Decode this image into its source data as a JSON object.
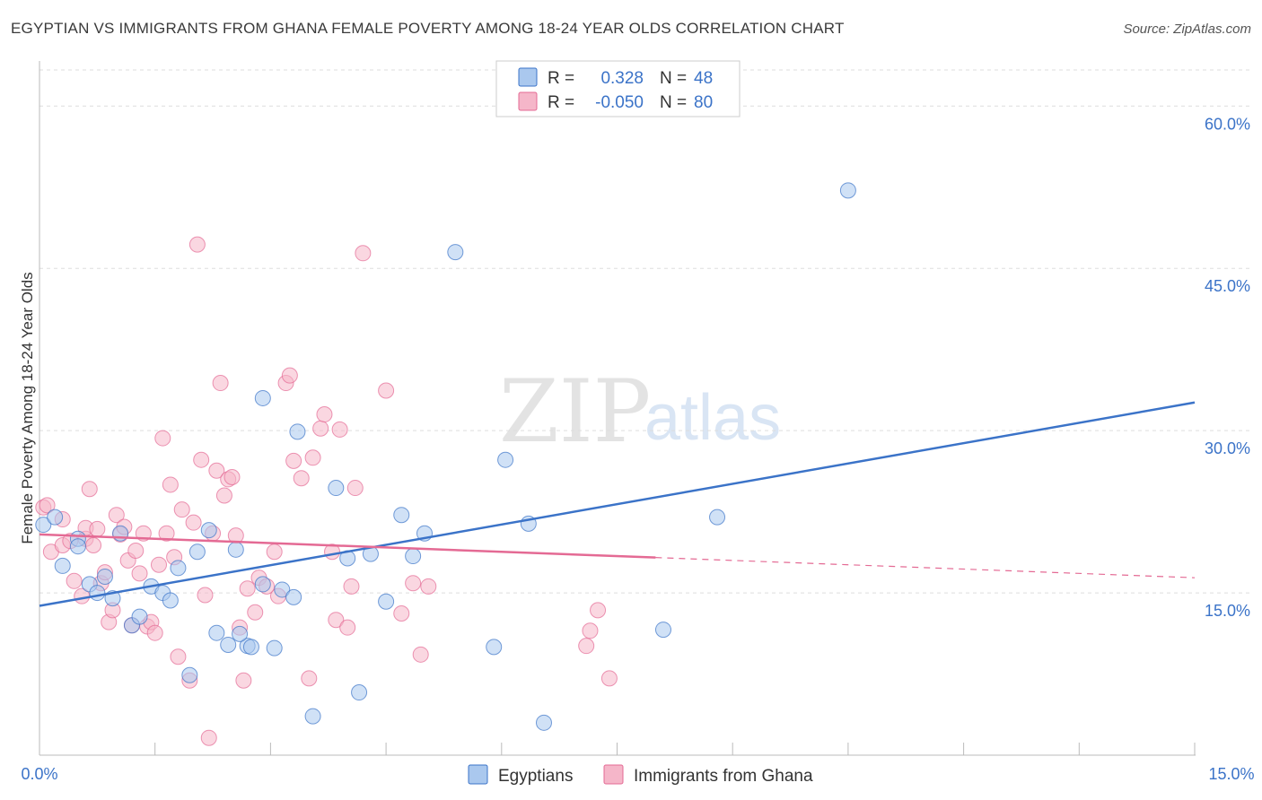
{
  "title": "EGYPTIAN VS IMMIGRANTS FROM GHANA FEMALE POVERTY AMONG 18-24 YEAR OLDS CORRELATION CHART",
  "source": "Source: ZipAtlas.com",
  "watermark": {
    "left": "ZIP",
    "right": "atlas"
  },
  "colors": {
    "blue": "#3b73c8",
    "blue_fill": "#aac8ee",
    "pink": "#e46a94",
    "pink_fill": "#f5b6c9",
    "grid": "#dddddd"
  },
  "legend": {
    "rows": [
      {
        "r_label": "R =",
        "r_value": "0.328",
        "n_label": "N =",
        "n_value": "48"
      },
      {
        "r_label": "R =",
        "r_value": "-0.050",
        "n_label": "N =",
        "n_value": "80"
      }
    ]
  },
  "chart_data": {
    "type": "scatter",
    "title": "EGYPTIAN VS IMMIGRANTS FROM GHANA FEMALE POVERTY AMONG 18-24 YEAR OLDS CORRELATION CHART",
    "xlabel": "",
    "ylabel": "Female Poverty Among 18-24 Year Olds",
    "xlim": [
      0,
      15
    ],
    "ylim": [
      0,
      64
    ],
    "x_tick_labels": [
      "0.0%",
      "15.0%"
    ],
    "y_ticks": [
      15,
      30,
      45,
      60
    ],
    "y_tick_labels": [
      "15.0%",
      "30.0%",
      "45.0%",
      "60.0%"
    ],
    "grid": true,
    "legend_position": "bottom",
    "series": [
      {
        "name": "Egyptians",
        "color": "#3b73c8",
        "r": 0.328,
        "n": 48,
        "trend": {
          "x": [
            0,
            15
          ],
          "y": [
            13.8,
            32.6
          ],
          "dashed_from": null
        },
        "points": [
          [
            0.05,
            21.3
          ],
          [
            0.2,
            22.0
          ],
          [
            0.3,
            17.5
          ],
          [
            0.5,
            20.0
          ],
          [
            0.5,
            19.3
          ],
          [
            0.65,
            15.8
          ],
          [
            0.75,
            15.0
          ],
          [
            0.85,
            16.5
          ],
          [
            0.95,
            14.5
          ],
          [
            1.05,
            20.5
          ],
          [
            1.2,
            12.0
          ],
          [
            1.3,
            12.8
          ],
          [
            1.45,
            15.6
          ],
          [
            1.6,
            15.0
          ],
          [
            1.7,
            14.3
          ],
          [
            1.8,
            17.3
          ],
          [
            1.95,
            7.4
          ],
          [
            2.05,
            18.8
          ],
          [
            2.2,
            20.8
          ],
          [
            2.3,
            11.3
          ],
          [
            2.55,
            19.0
          ],
          [
            2.45,
            10.2
          ],
          [
            2.7,
            10.1
          ],
          [
            2.6,
            11.2
          ],
          [
            2.75,
            10.0
          ],
          [
            2.9,
            15.8
          ],
          [
            2.9,
            33.0
          ],
          [
            3.05,
            9.9
          ],
          [
            3.15,
            15.3
          ],
          [
            3.3,
            14.6
          ],
          [
            3.35,
            29.9
          ],
          [
            3.55,
            3.6
          ],
          [
            3.85,
            24.7
          ],
          [
            4.0,
            18.2
          ],
          [
            4.15,
            5.8
          ],
          [
            4.3,
            18.6
          ],
          [
            4.5,
            14.2
          ],
          [
            4.7,
            22.2
          ],
          [
            4.85,
            18.4
          ],
          [
            5.0,
            20.5
          ],
          [
            5.4,
            46.5
          ],
          [
            5.9,
            10.0
          ],
          [
            6.05,
            27.3
          ],
          [
            6.35,
            21.4
          ],
          [
            6.55,
            3.0
          ],
          [
            8.1,
            11.6
          ],
          [
            8.8,
            22.0
          ],
          [
            10.5,
            52.2
          ]
        ]
      },
      {
        "name": "Immigrants from Ghana",
        "color": "#e46a94",
        "r": -0.05,
        "n": 80,
        "trend": {
          "x": [
            0,
            15
          ],
          "y": [
            20.4,
            16.4
          ],
          "dashed_from": 8.0
        },
        "points": [
          [
            0.05,
            22.9
          ],
          [
            0.1,
            23.1
          ],
          [
            0.15,
            18.8
          ],
          [
            0.3,
            21.8
          ],
          [
            0.3,
            19.4
          ],
          [
            0.4,
            19.8
          ],
          [
            0.45,
            16.1
          ],
          [
            0.55,
            14.7
          ],
          [
            0.6,
            20.0
          ],
          [
            0.6,
            21.0
          ],
          [
            0.65,
            24.6
          ],
          [
            0.7,
            19.4
          ],
          [
            0.75,
            20.9
          ],
          [
            0.8,
            15.9
          ],
          [
            0.85,
            16.9
          ],
          [
            0.9,
            12.3
          ],
          [
            0.95,
            13.4
          ],
          [
            1.0,
            22.2
          ],
          [
            1.05,
            20.4
          ],
          [
            1.1,
            21.1
          ],
          [
            1.15,
            18.0
          ],
          [
            1.2,
            12.0
          ],
          [
            1.25,
            18.9
          ],
          [
            1.3,
            16.8
          ],
          [
            1.35,
            20.5
          ],
          [
            1.4,
            11.9
          ],
          [
            1.45,
            12.3
          ],
          [
            1.5,
            11.3
          ],
          [
            1.55,
            17.6
          ],
          [
            1.6,
            29.3
          ],
          [
            1.65,
            20.5
          ],
          [
            1.7,
            25.0
          ],
          [
            1.75,
            18.3
          ],
          [
            1.8,
            9.1
          ],
          [
            1.85,
            22.7
          ],
          [
            1.95,
            6.9
          ],
          [
            2.0,
            21.5
          ],
          [
            2.05,
            47.2
          ],
          [
            2.1,
            27.3
          ],
          [
            2.15,
            14.8
          ],
          [
            2.2,
            1.6
          ],
          [
            2.25,
            20.5
          ],
          [
            2.3,
            26.3
          ],
          [
            2.35,
            34.4
          ],
          [
            2.4,
            24.0
          ],
          [
            2.45,
            25.5
          ],
          [
            2.5,
            25.7
          ],
          [
            2.55,
            20.3
          ],
          [
            2.6,
            11.8
          ],
          [
            2.65,
            6.9
          ],
          [
            2.7,
            15.4
          ],
          [
            2.8,
            13.2
          ],
          [
            2.85,
            16.4
          ],
          [
            2.95,
            15.6
          ],
          [
            3.05,
            18.8
          ],
          [
            3.1,
            14.7
          ],
          [
            3.2,
            34.4
          ],
          [
            3.25,
            35.1
          ],
          [
            3.3,
            27.2
          ],
          [
            3.4,
            25.6
          ],
          [
            3.5,
            7.1
          ],
          [
            3.55,
            27.5
          ],
          [
            3.65,
            30.2
          ],
          [
            3.7,
            31.5
          ],
          [
            3.8,
            18.8
          ],
          [
            3.85,
            12.5
          ],
          [
            3.9,
            30.1
          ],
          [
            4.0,
            11.8
          ],
          [
            4.05,
            15.6
          ],
          [
            4.1,
            24.7
          ],
          [
            4.2,
            46.4
          ],
          [
            4.5,
            33.7
          ],
          [
            4.7,
            13.1
          ],
          [
            4.85,
            15.9
          ],
          [
            4.95,
            9.3
          ],
          [
            5.05,
            15.6
          ],
          [
            7.1,
            10.1
          ],
          [
            7.25,
            13.4
          ],
          [
            7.4,
            7.1
          ],
          [
            7.15,
            11.5
          ]
        ]
      }
    ]
  }
}
